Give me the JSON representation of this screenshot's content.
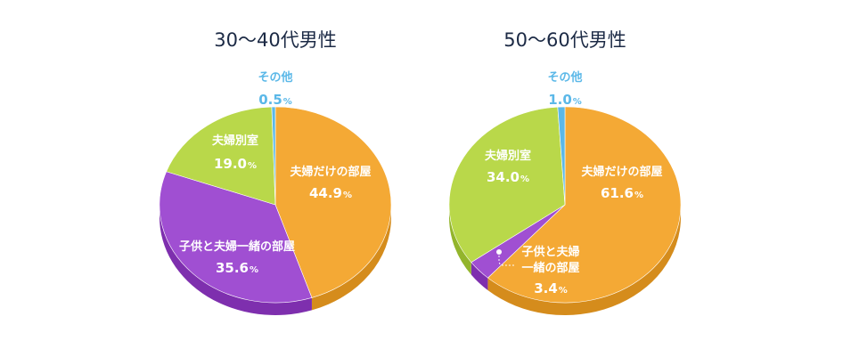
{
  "chart_data": [
    {
      "type": "pie",
      "title": "30〜40代男性",
      "slices": [
        {
          "label": "夫婦だけの部屋",
          "value": 44.9,
          "display": "44.9",
          "unit": "%",
          "color": "#f4a935",
          "side": "#d58c1c"
        },
        {
          "label": "子供と夫婦一緒の部屋",
          "value": 35.6,
          "display": "35.6",
          "unit": "%",
          "color": "#a04fd2",
          "side": "#7e2fae"
        },
        {
          "label": "夫婦別室",
          "value": 19.0,
          "display": "19.0",
          "unit": "%",
          "color": "#b9d84a",
          "side": "#93b52c"
        },
        {
          "label": "その他",
          "value": 0.5,
          "display": "0.5",
          "unit": "%",
          "color": "#5bb8e8",
          "side": "#3b94c4"
        }
      ]
    },
    {
      "type": "pie",
      "title": "50〜60代男性",
      "slices": [
        {
          "label": "夫婦だけの部屋",
          "value": 61.6,
          "display": "61.6",
          "unit": "%",
          "color": "#f4a935",
          "side": "#d58c1c"
        },
        {
          "label": "子供と夫婦一緒の部屋",
          "label_lines": [
            "子供と夫婦",
            "一緒の部屋"
          ],
          "value": 3.4,
          "display": "3.4",
          "unit": "%",
          "color": "#a04fd2",
          "side": "#7e2fae"
        },
        {
          "label": "夫婦別室",
          "value": 34.0,
          "display": "34.0",
          "unit": "%",
          "color": "#b9d84a",
          "side": "#93b52c"
        },
        {
          "label": "その他",
          "value": 1.0,
          "display": "1.0",
          "unit": "%",
          "color": "#5bb8e8",
          "side": "#3b94c4"
        }
      ]
    }
  ]
}
